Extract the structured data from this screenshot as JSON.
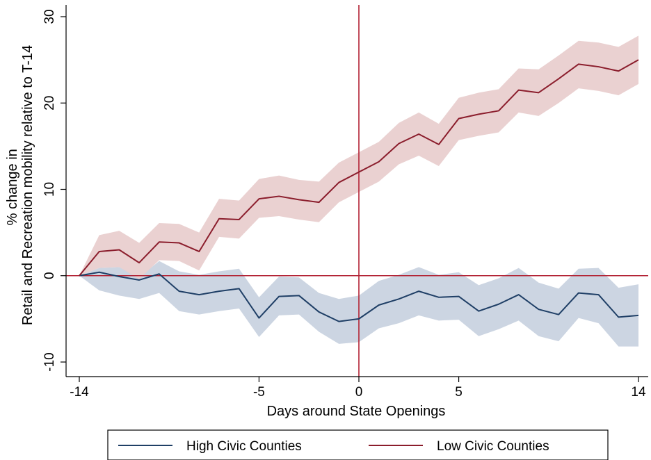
{
  "chart_data": {
    "type": "line",
    "title": "",
    "xlabel": "Days around State Openings",
    "ylabel_lines": [
      "% change in",
      "Retail and Recreation mobility relative to T-14"
    ],
    "xlim": [
      -14,
      14
    ],
    "ylim": [
      -10,
      30
    ],
    "x_ticks": [
      -14,
      -5,
      0,
      5,
      14
    ],
    "y_ticks": [
      -10,
      0,
      10,
      20,
      30
    ],
    "reference_lines": {
      "x": 0,
      "y": 0,
      "color": "#b22234"
    },
    "grid": false,
    "legend_position": "bottom",
    "x": [
      -14,
      -13,
      -12,
      -11,
      -10,
      -9,
      -8,
      -7,
      -6,
      -5,
      -4,
      -3,
      -2,
      -1,
      0,
      1,
      2,
      3,
      4,
      5,
      6,
      7,
      8,
      9,
      10,
      11,
      12,
      13,
      14
    ],
    "series": [
      {
        "name": "High Civic Counties",
        "color": "#1f3f66",
        "band_color": "#c9d3e0",
        "values": [
          0,
          0.4,
          -0.1,
          -0.5,
          0.2,
          -1.8,
          -2.2,
          -1.8,
          -1.5,
          -4.9,
          -2.4,
          -2.3,
          -4.2,
          -5.3,
          -5.0,
          -3.4,
          -2.7,
          -1.8,
          -2.5,
          -2.4,
          -4.1,
          -3.3,
          -2.2,
          -3.9,
          -4.5,
          -2.0,
          -2.2,
          -4.8,
          -4.6
        ],
        "lower": [
          0,
          -1.7,
          -2.3,
          -2.7,
          -2.0,
          -4.1,
          -4.5,
          -4.1,
          -3.8,
          -7.1,
          -4.6,
          -4.5,
          -6.5,
          -7.9,
          -7.7,
          -6.1,
          -5.5,
          -4.6,
          -5.2,
          -5.1,
          -7.0,
          -6.2,
          -5.2,
          -7.0,
          -7.6,
          -4.9,
          -5.5,
          -8.2,
          -8.2
        ],
        "upper": [
          0,
          0.9,
          1.0,
          -0.2,
          1.7,
          0.5,
          0.1,
          0.5,
          0.8,
          -2.5,
          -0.1,
          -0.2,
          -2.0,
          -2.7,
          -2.3,
          -0.6,
          0.1,
          1.0,
          0.1,
          0.4,
          -1.1,
          -0.3,
          0.9,
          -0.8,
          -1.5,
          0.8,
          0.9,
          -1.4,
          -1.0
        ]
      },
      {
        "name": "Low Civic Counties",
        "color": "#8b1d2c",
        "band_color": "#e9cfcf",
        "values": [
          0,
          2.8,
          3.0,
          1.5,
          3.9,
          3.8,
          2.8,
          6.6,
          6.5,
          8.9,
          9.2,
          8.8,
          8.5,
          10.8,
          12.0,
          13.2,
          15.3,
          16.4,
          15.2,
          18.2,
          18.7,
          19.1,
          21.5,
          21.2,
          22.8,
          24.5,
          24.2,
          23.7,
          25.0
        ],
        "lower": [
          0,
          0.9,
          1.0,
          -0.4,
          1.8,
          1.7,
          0.6,
          4.5,
          4.3,
          6.7,
          6.9,
          6.5,
          6.2,
          8.5,
          9.7,
          10.9,
          12.9,
          13.9,
          12.7,
          15.7,
          16.2,
          16.6,
          18.9,
          18.5,
          20.0,
          21.7,
          21.4,
          20.9,
          22.2
        ],
        "upper": [
          0,
          4.7,
          5.2,
          3.8,
          6.1,
          6.0,
          5.0,
          8.9,
          8.7,
          11.2,
          11.6,
          11.1,
          10.9,
          13.1,
          14.3,
          15.5,
          17.7,
          18.9,
          17.6,
          20.6,
          21.2,
          21.6,
          24.0,
          23.9,
          25.5,
          27.2,
          27.0,
          26.5,
          27.8
        ]
      }
    ]
  }
}
